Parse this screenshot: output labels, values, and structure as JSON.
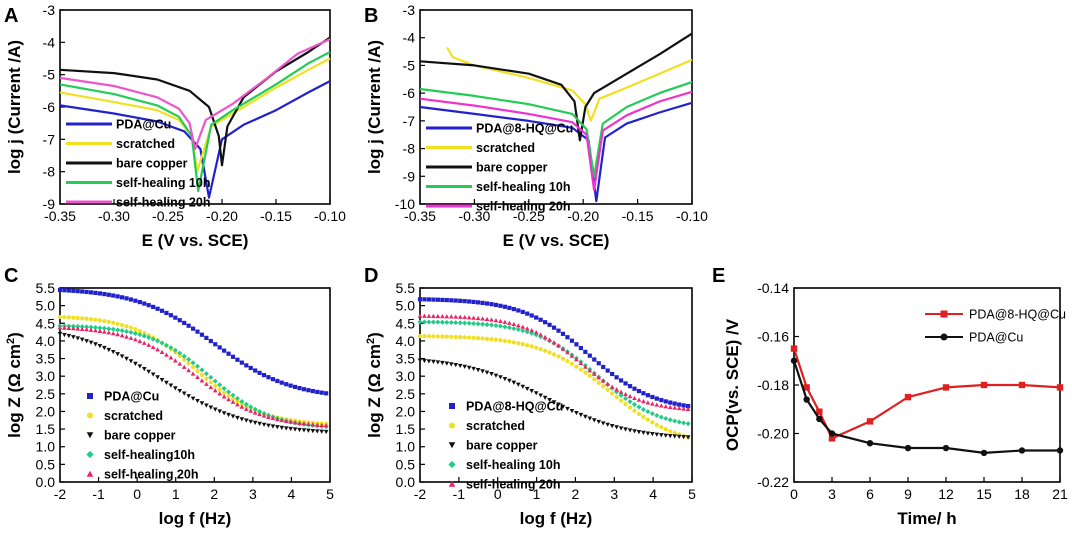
{
  "chart_data": [
    {
      "panel": "A",
      "type": "line",
      "xlabel": "E (V vs. SCE)",
      "ylabel": "log j (Current /A)",
      "xlim": [
        -0.35,
        -0.1
      ],
      "ylim": [
        -9,
        -3
      ],
      "xticks": [
        "-0.35",
        "-0.30",
        "-0.25",
        "-0.20",
        "-0.15",
        "-0.10"
      ],
      "yticks": [
        "-9",
        "-8",
        "-7",
        "-6",
        "-5",
        "-4",
        "-3"
      ],
      "legend_position": "lower-left",
      "series": [
        {
          "name": "PDA@Cu",
          "color": "#2222cc",
          "ecorr": -0.212,
          "jcorr": -8.8,
          "x": [
            -0.35,
            -0.3,
            -0.26,
            -0.235,
            -0.22,
            -0.212,
            -0.2,
            -0.18,
            -0.15,
            -0.12,
            -0.1
          ],
          "y": [
            -5.95,
            -6.2,
            -6.45,
            -6.75,
            -7.3,
            -8.8,
            -7.0,
            -6.55,
            -6.1,
            -5.55,
            -5.2
          ]
        },
        {
          "name": "scratched",
          "color": "#f0e020",
          "ecorr": -0.223,
          "jcorr": -8.0,
          "x": [
            -0.35,
            -0.3,
            -0.26,
            -0.24,
            -0.228,
            -0.223,
            -0.21,
            -0.19,
            -0.15,
            -0.12,
            -0.1
          ],
          "y": [
            -5.55,
            -5.85,
            -6.1,
            -6.4,
            -6.9,
            -8.0,
            -6.6,
            -6.2,
            -5.4,
            -4.85,
            -4.5
          ]
        },
        {
          "name": "bare copper",
          "color": "#111111",
          "ecorr": -0.2,
          "jcorr": -7.8,
          "x": [
            -0.35,
            -0.3,
            -0.26,
            -0.23,
            -0.212,
            -0.203,
            -0.2,
            -0.195,
            -0.18,
            -0.15,
            -0.12,
            -0.1
          ],
          "y": [
            -4.85,
            -4.95,
            -5.15,
            -5.5,
            -6.0,
            -6.9,
            -7.8,
            -6.6,
            -5.7,
            -4.9,
            -4.3,
            -3.85
          ]
        },
        {
          "name": "self-healing 10h",
          "color": "#22cc55",
          "ecorr": -0.222,
          "jcorr": -8.6,
          "x": [
            -0.35,
            -0.3,
            -0.26,
            -0.24,
            -0.228,
            -0.222,
            -0.21,
            -0.19,
            -0.15,
            -0.12,
            -0.1
          ],
          "y": [
            -5.3,
            -5.6,
            -5.95,
            -6.3,
            -6.9,
            -8.6,
            -6.55,
            -6.1,
            -5.3,
            -4.65,
            -4.3
          ]
        },
        {
          "name": "self-healing 20h",
          "color": "#ee55cc",
          "ecorr": -0.225,
          "jcorr": -7.3,
          "x": [
            -0.35,
            -0.3,
            -0.26,
            -0.24,
            -0.23,
            -0.225,
            -0.215,
            -0.19,
            -0.16,
            -0.13,
            -0.1
          ],
          "y": [
            -5.1,
            -5.35,
            -5.7,
            -6.05,
            -6.5,
            -7.3,
            -6.4,
            -5.9,
            -5.15,
            -4.35,
            -3.9
          ]
        }
      ]
    },
    {
      "panel": "B",
      "type": "line",
      "xlabel": "E (V vs. SCE)",
      "ylabel": "log j (Current /A)",
      "xlim": [
        -0.35,
        -0.1
      ],
      "ylim": [
        -10,
        -3
      ],
      "xticks": [
        "-0.35",
        "-0.30",
        "-0.25",
        "-0.20",
        "-0.15",
        "-0.10"
      ],
      "yticks": [
        "-10",
        "-9",
        "-8",
        "-7",
        "-6",
        "-5",
        "-4",
        "-3"
      ],
      "legend_position": "lower-left",
      "series": [
        {
          "name": "PDA@8-HQ@Cu",
          "color": "#2222cc",
          "ecorr": -0.188,
          "jcorr": -9.9,
          "x": [
            -0.35,
            -0.3,
            -0.25,
            -0.21,
            -0.195,
            -0.188,
            -0.18,
            -0.16,
            -0.13,
            -0.1
          ],
          "y": [
            -6.5,
            -6.75,
            -7.0,
            -7.25,
            -7.7,
            -9.9,
            -7.6,
            -7.1,
            -6.7,
            -6.35
          ]
        },
        {
          "name": "scratched",
          "color": "#f0e020",
          "ecorr": -0.193,
          "jcorr": -7.0,
          "x": [
            -0.325,
            -0.32,
            -0.3,
            -0.25,
            -0.21,
            -0.198,
            -0.193,
            -0.185,
            -0.16,
            -0.13,
            -0.1
          ],
          "y": [
            -4.35,
            -4.7,
            -5.0,
            -5.45,
            -5.9,
            -6.4,
            -7.0,
            -6.2,
            -5.8,
            -5.3,
            -4.8
          ]
        },
        {
          "name": "bare copper",
          "color": "#111111",
          "ecorr": -0.203,
          "jcorr": -7.7,
          "x": [
            -0.35,
            -0.3,
            -0.25,
            -0.22,
            -0.208,
            -0.203,
            -0.198,
            -0.19,
            -0.16,
            -0.13,
            -0.1
          ],
          "y": [
            -4.85,
            -5.0,
            -5.3,
            -5.7,
            -6.3,
            -7.7,
            -6.5,
            -6.0,
            -5.3,
            -4.6,
            -3.85
          ]
        },
        {
          "name": "self-healing 10h",
          "color": "#22cc55",
          "ecorr": -0.19,
          "jcorr": -9.0,
          "x": [
            -0.35,
            -0.3,
            -0.25,
            -0.21,
            -0.197,
            -0.19,
            -0.182,
            -0.16,
            -0.13,
            -0.1
          ],
          "y": [
            -5.85,
            -6.1,
            -6.4,
            -6.75,
            -7.3,
            -9.0,
            -7.1,
            -6.5,
            -6.0,
            -5.6
          ]
        },
        {
          "name": "self-healing 20h",
          "color": "#ee33cc",
          "ecorr": -0.19,
          "jcorr": -9.5,
          "x": [
            -0.35,
            -0.3,
            -0.25,
            -0.21,
            -0.197,
            -0.19,
            -0.182,
            -0.16,
            -0.13,
            -0.1
          ],
          "y": [
            -6.2,
            -6.45,
            -6.75,
            -7.05,
            -7.5,
            -9.5,
            -7.35,
            -6.8,
            -6.3,
            -5.95
          ]
        }
      ]
    },
    {
      "panel": "C",
      "type": "scatter",
      "xlabel": "log f (Hz)",
      "ylabel": "log Z (Ω cm²)",
      "xlim": [
        -2,
        5
      ],
      "ylim": [
        0,
        5.5
      ],
      "xticks": [
        "-2",
        "-1",
        "0",
        "1",
        "2",
        "3",
        "4",
        "5"
      ],
      "yticks": [
        "0.0",
        "0.5",
        "1.0",
        "1.5",
        "2.0",
        "2.5",
        "3.0",
        "3.5",
        "4.0",
        "4.5",
        "5.0",
        "5.5"
      ],
      "legend_position": "lower-left",
      "series": [
        {
          "name": "PDA@Cu",
          "color": "#2222cc",
          "marker": "square",
          "params": {
            "high": 5.5,
            "low": 2.35,
            "center": 2.0,
            "width": 1.0
          }
        },
        {
          "name": "scratched",
          "color": "#f0e020",
          "marker": "circle",
          "params": {
            "high": 4.72,
            "low": 1.6,
            "center": 1.55,
            "width": 0.82
          }
        },
        {
          "name": "bare copper",
          "color": "#111111",
          "marker": "triangle-down",
          "params": {
            "high": 4.5,
            "low": 1.35,
            "center": 0.6,
            "width": 1.15
          }
        },
        {
          "name": "self-healing10h",
          "color": "#22cc88",
          "marker": "diamond",
          "params": {
            "high": 4.45,
            "low": 1.5,
            "center": 1.9,
            "width": 0.8
          }
        },
        {
          "name": "self-healing 20h",
          "color": "#ee2266",
          "marker": "triangle-up",
          "params": {
            "high": 4.42,
            "low": 1.55,
            "center": 1.55,
            "width": 0.85
          }
        }
      ]
    },
    {
      "panel": "D",
      "type": "scatter",
      "xlabel": "log f (Hz)",
      "ylabel": "log Z (Ω cm²)",
      "xlim": [
        -2,
        5
      ],
      "ylim": [
        0,
        5.5
      ],
      "xticks": [
        "-2",
        "-1",
        "0",
        "1",
        "2",
        "3",
        "4",
        "5"
      ],
      "yticks": [
        "0.0",
        "0.5",
        "1.0",
        "1.5",
        "2.0",
        "2.5",
        "3.0",
        "3.5",
        "4.0",
        "4.5",
        "5.0",
        "5.5"
      ],
      "legend_position": "lower-left",
      "series": [
        {
          "name": "PDA@8-HQ@Cu",
          "color": "#2222cc",
          "marker": "square",
          "params": {
            "high": 5.2,
            "low": 2.0,
            "center": 2.35,
            "width": 0.85
          }
        },
        {
          "name": "scratched",
          "color": "#f0e020",
          "marker": "circle",
          "params": {
            "high": 4.15,
            "low": 0.95,
            "center": 2.9,
            "width": 0.9
          }
        },
        {
          "name": "bare copper",
          "color": "#111111",
          "marker": "triangle-down",
          "params": {
            "high": 3.55,
            "low": 1.2,
            "center": 1.25,
            "width": 1.05
          }
        },
        {
          "name": "self-healing 10h",
          "color": "#22cc88",
          "marker": "diamond",
          "params": {
            "high": 4.55,
            "low": 1.5,
            "center": 2.55,
            "width": 0.8
          }
        },
        {
          "name": "self-healing 20h",
          "color": "#ee2266",
          "marker": "triangle-up",
          "params": {
            "high": 4.72,
            "low": 2.0,
            "center": 2.15,
            "width": 0.75
          }
        }
      ]
    },
    {
      "panel": "E",
      "type": "line",
      "xlabel": "Time/ h",
      "ylabel": "OCP(vs. SCE) /V",
      "xlim": [
        0,
        21
      ],
      "ylim": [
        -0.22,
        -0.14
      ],
      "xticks": [
        "0",
        "3",
        "6",
        "9",
        "12",
        "15",
        "18",
        "21"
      ],
      "yticks": [
        "-0.22",
        "-0.20",
        "-0.18",
        "-0.16",
        "-0.14"
      ],
      "legend_position": "top-right",
      "series": [
        {
          "name": "PDA@8-HQ@Cu",
          "color": "#e02020",
          "marker": "square",
          "x": [
            0,
            1,
            2,
            3,
            6,
            9,
            12,
            15,
            18,
            21
          ],
          "y": [
            -0.165,
            -0.181,
            -0.191,
            -0.202,
            -0.195,
            -0.185,
            -0.181,
            -0.18,
            -0.18,
            -0.181
          ]
        },
        {
          "name": "PDA@Cu",
          "color": "#111111",
          "marker": "circle",
          "x": [
            0,
            1,
            2,
            3,
            6,
            9,
            12,
            15,
            18,
            21
          ],
          "y": [
            -0.17,
            -0.186,
            -0.194,
            -0.2,
            -0.204,
            -0.206,
            -0.206,
            -0.208,
            -0.207,
            -0.207
          ]
        }
      ]
    }
  ],
  "panel_letters": {
    "a": "A",
    "b": "B",
    "c": "C",
    "d": "D",
    "e": "E"
  }
}
